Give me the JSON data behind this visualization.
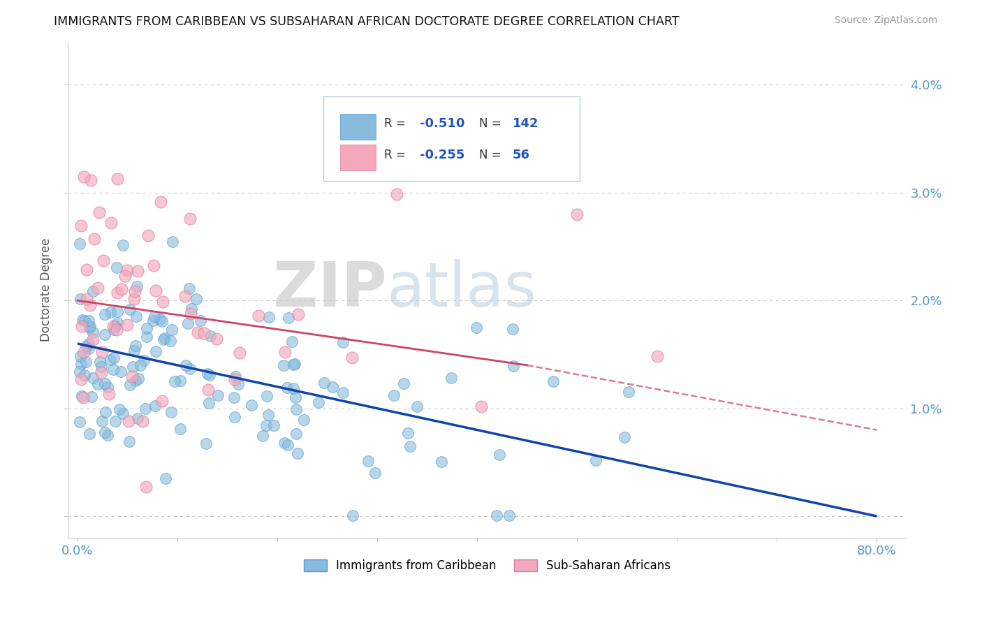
{
  "title": "IMMIGRANTS FROM CARIBBEAN VS SUBSAHARAN AFRICAN DOCTORATE DEGREE CORRELATION CHART",
  "source": "Source: ZipAtlas.com",
  "ylabel": "Doctorate Degree",
  "yticks": [
    0.0,
    0.01,
    0.02,
    0.03,
    0.04
  ],
  "ytick_labels": [
    "",
    "1.0%",
    "2.0%",
    "3.0%",
    "4.0%"
  ],
  "xticks": [
    0.0,
    0.1,
    0.2,
    0.3,
    0.4,
    0.5,
    0.6,
    0.7,
    0.8
  ],
  "xlim": [
    -0.01,
    0.83
  ],
  "ylim": [
    -0.002,
    0.044
  ],
  "watermark_zip": "ZIP",
  "watermark_atlas": "atlas",
  "series1_color": "#88bbdd",
  "series1_edge": "#5599cc",
  "series2_color": "#f4a8bc",
  "series2_edge": "#dd7799",
  "trendline1_color": "#1144aa",
  "trendline2_color": "#cc4466",
  "background_color": "#ffffff",
  "grid_color": "#cccccc",
  "legend_R1": "-0.510",
  "legend_N1": "142",
  "legend_R2": "-0.255",
  "legend_N2": "56",
  "blue_trendline": [
    0.0,
    0.8,
    0.016,
    0.0
  ],
  "pink_solid_trendline": [
    0.0,
    0.45,
    0.02,
    0.014
  ],
  "pink_dashed_trendline": [
    0.45,
    0.8,
    0.014,
    0.008
  ]
}
